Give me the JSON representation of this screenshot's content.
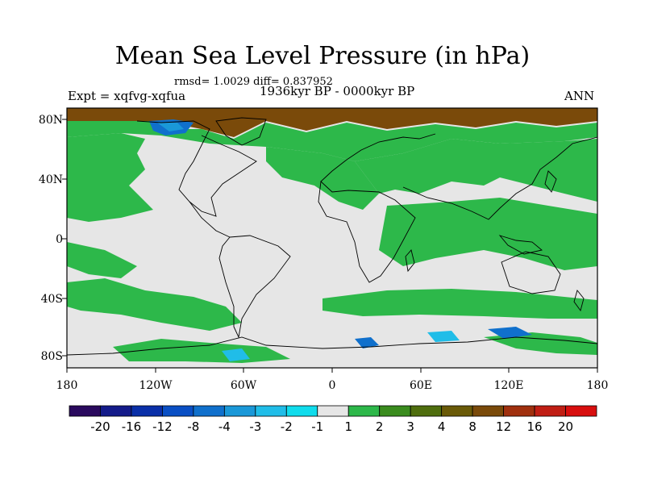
{
  "header": {
    "title": "Mean Sea Level Pressure (in hPa)",
    "stats": "rmsd= 1.0029 diff= 0.837952",
    "expt": "Expt = xqfvg-xqfua",
    "period": "1936kyr BP - 0000kyr BP",
    "season": "ANN"
  },
  "map": {
    "lat_labels": [
      "80N",
      "40N",
      "0",
      "40S",
      "80S"
    ],
    "lon_labels": [
      "180",
      "120W",
      "60W",
      "0",
      "60E",
      "120E",
      "180"
    ],
    "background_color": "#e6e6e6",
    "positive_color": "#2db84a"
  },
  "colorbar": {
    "colors": [
      "#2a0a5e",
      "#141b8a",
      "#0a2fa8",
      "#0a4fc4",
      "#1070cc",
      "#1a98d8",
      "#20bde8",
      "#10dcec",
      "#e6e6e6",
      "#2db84a",
      "#3a8c1e",
      "#4f6e0e",
      "#6a5a08",
      "#7a4a0a",
      "#a0300e",
      "#c01e14",
      "#d80f0f"
    ],
    "labels": [
      "-20",
      "-16",
      "-12",
      "-8",
      "-4",
      "-3",
      "-2",
      "-1",
      "1",
      "2",
      "3",
      "4",
      "8",
      "12",
      "16",
      "20"
    ]
  }
}
